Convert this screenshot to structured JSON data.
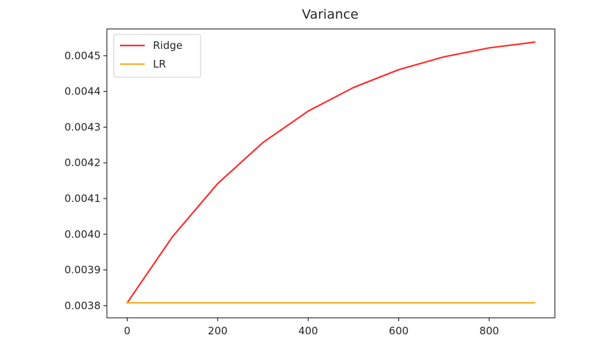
{
  "chart_data": {
    "type": "line",
    "title": "Variance",
    "xlabel": "",
    "ylabel": "",
    "xlim": [
      -45,
      945
    ],
    "ylim": [
      0.003766,
      0.004575
    ],
    "xticks": [
      0,
      200,
      400,
      600,
      800
    ],
    "xtick_labels": [
      "0",
      "200",
      "400",
      "600",
      "800"
    ],
    "yticks": [
      0.0038,
      0.0039,
      0.004,
      0.0041,
      0.0042,
      0.0043,
      0.0044,
      0.0045
    ],
    "ytick_labels": [
      "0.0038",
      "0.0039",
      "0.0040",
      "0.0041",
      "0.0042",
      "0.0043",
      "0.0044",
      "0.0045"
    ],
    "grid": false,
    "legend": {
      "position": "upper-left"
    },
    "series": [
      {
        "name": "Ridge",
        "color": "#ff2a2a",
        "x": [
          0,
          100,
          200,
          300,
          400,
          500,
          600,
          700,
          800,
          900
        ],
        "y": [
          0.003808,
          0.003993,
          0.004142,
          0.004257,
          0.004345,
          0.004411,
          0.004461,
          0.004497,
          0.004522,
          0.004538
        ]
      },
      {
        "name": "LR",
        "color": "#ffae25",
        "x": [
          0,
          100,
          200,
          300,
          400,
          500,
          600,
          700,
          800,
          900
        ],
        "y": [
          0.003808,
          0.003808,
          0.003808,
          0.003808,
          0.003808,
          0.003808,
          0.003808,
          0.003808,
          0.003808,
          0.003808
        ]
      }
    ]
  }
}
